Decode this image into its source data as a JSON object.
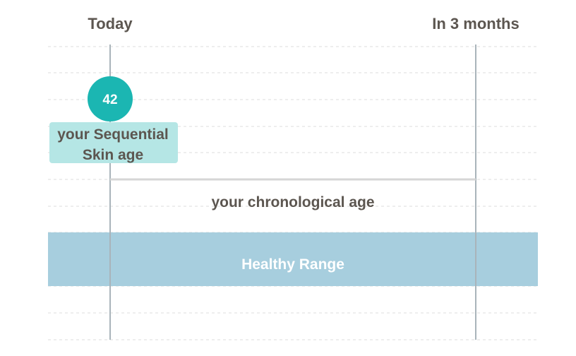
{
  "chart_data": {
    "type": "timeline",
    "columns": [
      "Today",
      "In 3 months"
    ],
    "healthy_range": {
      "label": "Healthy Range"
    },
    "reference_line": {
      "label": "your chronological age"
    },
    "markers": [
      {
        "column": "Today",
        "value": "42",
        "label_lines": [
          "your Sequential",
          "Skin age"
        ]
      }
    ],
    "grid": true,
    "colors": {
      "marker": "#1bb6b2",
      "marker_label_bg": "#b5e6e5",
      "healthy_range": "#a7cede",
      "reference_line": "#d6d6d6",
      "vertical_line": "#a9b4ba",
      "grid": "#dcdcdc",
      "text": "#5c5650"
    }
  }
}
